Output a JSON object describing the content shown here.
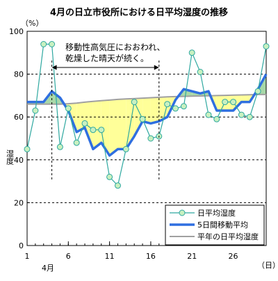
{
  "chart_data": {
    "type": "line",
    "title": "4月の日立市役所における日平均湿度の推移",
    "ylabel": "湿度",
    "yunit": "（%）",
    "xunit": "（日）",
    "month_label": "4月",
    "ylim": [
      0,
      100
    ],
    "xlim": [
      1,
      30
    ],
    "yticks": [
      0,
      20,
      40,
      60,
      80,
      100
    ],
    "xticks": [
      1,
      6,
      11,
      16,
      21,
      26
    ],
    "grid": true,
    "legend": "bottom-right",
    "annotation": {
      "line1": "移動性高気圧におおわれ、",
      "line2": "乾燥した晴天が続く。",
      "from_day": 4,
      "to_day": 17
    },
    "x": [
      1,
      2,
      3,
      4,
      5,
      6,
      7,
      8,
      9,
      10,
      11,
      12,
      13,
      14,
      15,
      16,
      17,
      18,
      19,
      20,
      21,
      22,
      23,
      24,
      25,
      26,
      27,
      28,
      29,
      30
    ],
    "series": [
      {
        "name": "日平均湿度",
        "values": [
          45,
          63,
          94,
          94,
          46,
          64,
          48,
          57,
          54,
          54,
          32,
          28,
          45,
          67,
          59,
          50,
          51,
          66,
          64,
          65,
          90,
          81,
          61,
          59,
          67,
          67,
          61,
          60,
          72,
          93
        ]
      },
      {
        "name": "5日間移動平均",
        "values": [
          67,
          67,
          67,
          72,
          69,
          63,
          53,
          55,
          45,
          48,
          42,
          45,
          45,
          51,
          58,
          57,
          58,
          60,
          68,
          73,
          72,
          71,
          72,
          63,
          63,
          63,
          67,
          67,
          73,
          80
        ]
      },
      {
        "name": "平年の日平均湿度",
        "values": [
          66,
          66,
          66,
          66,
          66,
          66.2,
          66.5,
          66.9,
          67.3,
          67.6,
          67.9,
          68.2,
          68.4,
          68.6,
          68.8,
          69,
          69.2,
          69.4,
          69.5,
          69.6,
          69.7,
          69.8,
          69.9,
          70,
          70.1,
          70.2,
          70.3,
          70.4,
          70.5,
          70.5
        ]
      }
    ]
  },
  "colors": {
    "daily": "#2ea8a0",
    "daily_fill": "#c8f0c0",
    "moving": "#2f6fe0",
    "normal": "#a0a0a0",
    "dry_fill": "#ffff99",
    "humid_fill": "#a8d8a8"
  }
}
